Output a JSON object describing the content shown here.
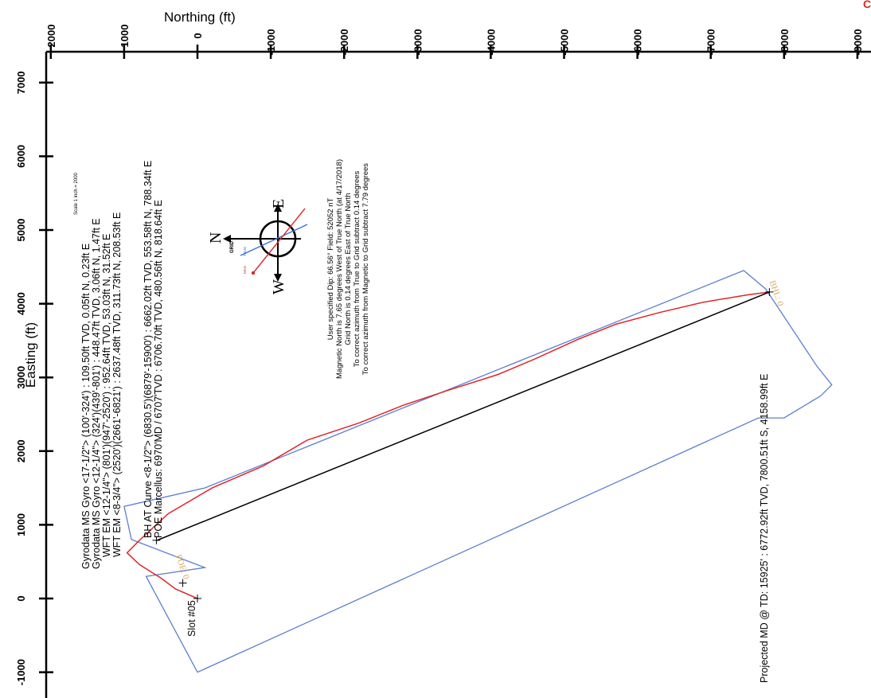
{
  "chart_data": {
    "type": "line",
    "xlabel": "Northing (ft)",
    "ylabel": "Easting (ft)",
    "scale_note": "Scale 1 inch = 2000",
    "northing_ticks": [
      "2000",
      "1000",
      "0",
      "-1000",
      "-2000",
      "-3000",
      "-4000",
      "-5000",
      "-6000",
      "-7000",
      "-8000",
      "-9000"
    ],
    "easting_ticks": [
      "7000",
      "6000",
      "5000",
      "4000",
      "3000",
      "2000",
      "1000",
      "0",
      "-1000"
    ],
    "northing_tick_values": [
      2000,
      1000,
      0,
      -1000,
      -2000,
      -3000,
      -4000,
      -5000,
      -6000,
      -7000,
      -8000,
      -9000
    ],
    "easting_tick_values": [
      7000,
      6000,
      5000,
      4000,
      3000,
      2000,
      1000,
      0,
      -1000
    ],
    "northing_range": [
      2000,
      -9000
    ],
    "easting_range": [
      7000,
      -1000
    ],
    "series": [
      {
        "color": "#e0262a",
        "points": [
          [
            0,
            0
          ],
          [
            300,
            130
          ],
          [
            500,
            280
          ],
          [
            790,
            460
          ],
          [
            960,
            620
          ],
          [
            790,
            790
          ],
          [
            400,
            1150
          ],
          [
            -200,
            1500
          ],
          [
            -900,
            1800
          ],
          [
            -1500,
            2150
          ],
          [
            -2200,
            2380
          ],
          [
            -2800,
            2620
          ],
          [
            -3400,
            2820
          ],
          [
            -4100,
            3040
          ],
          [
            -4600,
            3250
          ],
          [
            -5200,
            3520
          ],
          [
            -5700,
            3720
          ],
          [
            -6300,
            3880
          ],
          [
            -6900,
            4020
          ],
          [
            -7500,
            4120
          ],
          [
            -7800,
            4159
          ]
        ]
      },
      {
        "color": "#000000",
        "points": [
          [
            554,
            788
          ],
          [
            -7800,
            4159
          ]
        ]
      }
    ],
    "lease_boundary": {
      "color": "#5b7fd0",
      "points": [
        [
          0,
          -1000
        ],
        [
          700,
          300
        ],
        [
          -100,
          420
        ],
        [
          900,
          800
        ],
        [
          1000,
          1250
        ],
        [
          -100,
          1500
        ],
        [
          -7450,
          4450
        ],
        [
          -7750,
          4200
        ],
        [
          -8150,
          3600
        ],
        [
          -8450,
          3150
        ],
        [
          -8650,
          2900
        ],
        [
          -8500,
          2750
        ],
        [
          -8000,
          2450
        ],
        [
          -7650,
          2450
        ],
        [
          0,
          -1000
        ]
      ]
    },
    "markers": [
      [
        0,
        0
      ],
      [
        200,
        210
      ],
      [
        560,
        790
      ],
      [
        -7800,
        4159
      ]
    ],
    "plat_labels": [
      {
        "text": "POE: 0",
        "n": 300,
        "e": 580
      },
      {
        "text": "BHL: 0",
        "n": -7800,
        "e": 4300
      }
    ],
    "annotations": {
      "gyro_lines": [
        "Gyrodata MS Gyro <17-1/2\"> (100'-324') : 109.50ft TVD, 0.05ft N, 0.23ft E",
        "Gyrodata MS Gyro <12-1/4\"> (324')(439'-801') : 448.47ft TVD, 3.06ft N, 1.47ft E",
        "WFT EM <12-1/4\"> (801')(947'-2520') : 952.64ft TVD, 53.03ft N, 31.52ft E",
        "WFT EM <8-3/4\"> (2520')(2661'-6821') : 2637.48ft TVD, 311.73ft N, 208.53ft E"
      ],
      "bh_lines": [
        "BH AT Curve <8-1/2\"> (6830.5')(6879'-15900') : 6662.02ft TVD, 553.58ft N, 788.34ft E",
        "POE Marcellus: 6970'MD / 6707'TVD : 6706.70ft TVD, 480.56ft N, 818.64ft E"
      ],
      "slot_label": "Slot #05",
      "projected_label": "Projected MD @ TD: 15925' : 6772.92ft TVD, 7800.51ft S, 4158.99ft E",
      "magnetic_lines": [
        "User specified Dip: 66.56°  Field: 52052 nT",
        "Magnetic North is 7.65 degrees West of True North (at 4/17/2018)",
        "Grid North is 0.14 degrees East of True North",
        "To correct azimuth from True to Grid subtract 0.14 degrees",
        "To correct azimuth from Magnetic to Grid subtract 7.79 degrees"
      ]
    },
    "compass": {
      "north": "N",
      "grid": "GRID",
      "east": "E",
      "west": "W",
      "true_label": "TRUE",
      "mag_label": "MAG"
    },
    "corner_mark": "C"
  },
  "colors": {
    "wellpath": "#e0262a",
    "plan": "#000000",
    "lease": "#5b7fd0",
    "plat_label": "#d9a860",
    "compass_true": "#3b6fd6",
    "compass_mag": "#e0262a"
  }
}
